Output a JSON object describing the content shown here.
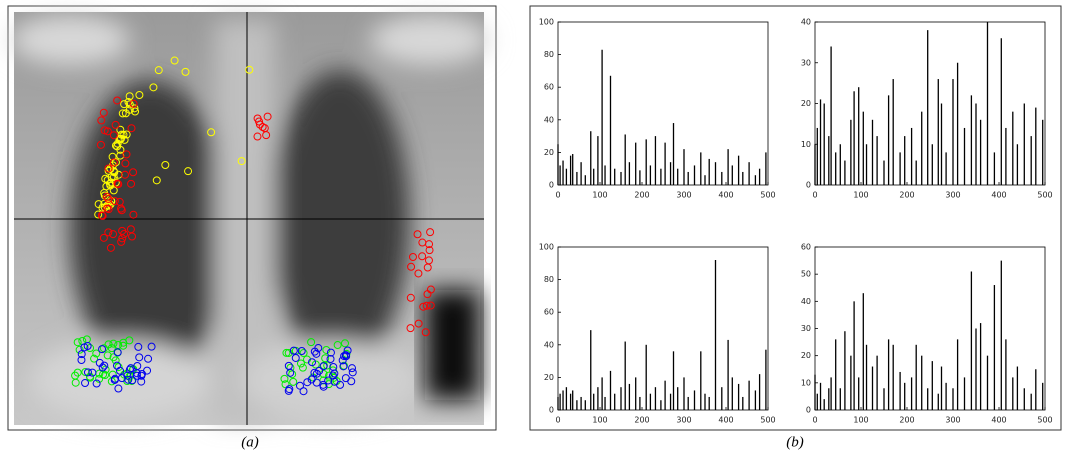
{
  "captions": [
    "(a)",
    "(b)"
  ],
  "chart_data": [
    {
      "type": "bar",
      "xlim": [
        0,
        500
      ],
      "xticks": [
        0,
        100,
        200,
        300,
        400,
        500
      ],
      "ylim": [
        0,
        100
      ],
      "yticks": [
        0,
        20,
        40,
        60,
        80,
        100
      ],
      "color": "#000000",
      "x": [
        0,
        5,
        12,
        20,
        30,
        35,
        45,
        55,
        65,
        78,
        85,
        95,
        105,
        112,
        125,
        135,
        150,
        160,
        170,
        185,
        195,
        210,
        220,
        232,
        245,
        255,
        268,
        275,
        285,
        300,
        310,
        325,
        340,
        350,
        360,
        375,
        390,
        405,
        415,
        430,
        440,
        455,
        470,
        480,
        495
      ],
      "values": [
        25,
        12,
        15,
        10,
        18,
        19,
        8,
        14,
        6,
        33,
        10,
        30,
        83,
        12,
        67,
        10,
        8,
        31,
        14,
        26,
        9,
        28,
        12,
        30,
        10,
        26,
        14,
        38,
        10,
        22,
        8,
        12,
        20,
        6,
        16,
        14,
        8,
        22,
        12,
        18,
        8,
        14,
        6,
        10,
        20
      ]
    },
    {
      "type": "bar",
      "xlim": [
        0,
        500
      ],
      "xticks": [
        0,
        100,
        200,
        300,
        400,
        500
      ],
      "ylim": [
        0,
        40
      ],
      "yticks": [
        0,
        10,
        20,
        30,
        40
      ],
      "color": "#000000",
      "x": [
        0,
        5,
        12,
        20,
        30,
        35,
        45,
        55,
        65,
        78,
        85,
        95,
        105,
        112,
        125,
        135,
        150,
        160,
        170,
        185,
        195,
        210,
        220,
        232,
        245,
        255,
        268,
        275,
        285,
        300,
        310,
        325,
        340,
        350,
        360,
        375,
        390,
        405,
        415,
        430,
        440,
        455,
        470,
        480,
        495
      ],
      "values": [
        10,
        14,
        21,
        20,
        12,
        34,
        8,
        10,
        6,
        16,
        23,
        24,
        18,
        10,
        16,
        12,
        6,
        22,
        26,
        8,
        12,
        14,
        6,
        18,
        38,
        10,
        26,
        20,
        8,
        26,
        30,
        14,
        22,
        20,
        16,
        40,
        8,
        36,
        14,
        18,
        10,
        20,
        12,
        19,
        16
      ]
    },
    {
      "type": "bar",
      "xlim": [
        0,
        500
      ],
      "xticks": [
        0,
        100,
        200,
        300,
        400,
        500
      ],
      "ylim": [
        0,
        100
      ],
      "yticks": [
        0,
        20,
        40,
        60,
        80,
        100
      ],
      "color": "#000000",
      "x": [
        0,
        5,
        12,
        20,
        30,
        35,
        45,
        55,
        65,
        78,
        85,
        95,
        105,
        112,
        125,
        135,
        150,
        160,
        170,
        185,
        195,
        210,
        220,
        232,
        245,
        255,
        268,
        275,
        285,
        300,
        310,
        325,
        340,
        350,
        360,
        375,
        390,
        405,
        415,
        430,
        440,
        455,
        470,
        480,
        495
      ],
      "values": [
        8,
        10,
        12,
        14,
        10,
        12,
        6,
        8,
        6,
        49,
        10,
        14,
        20,
        8,
        24,
        10,
        14,
        42,
        16,
        20,
        8,
        40,
        10,
        14,
        6,
        18,
        10,
        36,
        14,
        20,
        8,
        12,
        36,
        10,
        8,
        92,
        14,
        43,
        20,
        16,
        8,
        18,
        12,
        22,
        37
      ]
    },
    {
      "type": "bar",
      "xlim": [
        0,
        500
      ],
      "xticks": [
        0,
        100,
        200,
        300,
        400,
        500
      ],
      "ylim": [
        0,
        60
      ],
      "yticks": [
        0,
        10,
        20,
        30,
        40,
        50,
        60
      ],
      "color": "#000000",
      "x": [
        0,
        5,
        12,
        20,
        30,
        35,
        45,
        55,
        65,
        78,
        85,
        95,
        105,
        112,
        125,
        135,
        150,
        160,
        170,
        185,
        195,
        210,
        220,
        232,
        245,
        255,
        268,
        275,
        285,
        300,
        310,
        325,
        340,
        350,
        360,
        375,
        390,
        405,
        415,
        430,
        440,
        455,
        470,
        480,
        495
      ],
      "values": [
        13,
        6,
        10,
        4,
        8,
        12,
        26,
        8,
        29,
        20,
        40,
        12,
        43,
        24,
        16,
        20,
        8,
        26,
        24,
        14,
        10,
        12,
        24,
        20,
        8,
        18,
        6,
        16,
        10,
        8,
        26,
        12,
        51,
        30,
        32,
        20,
        46,
        55,
        26,
        12,
        16,
        8,
        6,
        15,
        10
      ]
    }
  ]
}
